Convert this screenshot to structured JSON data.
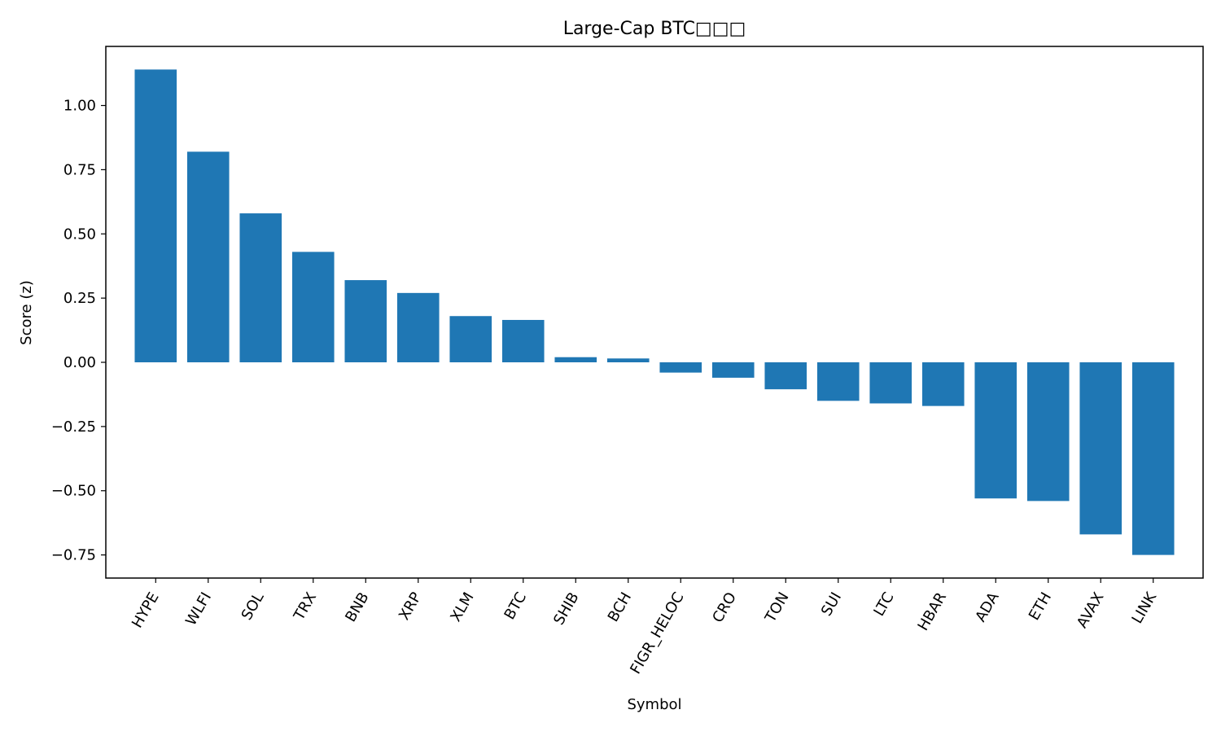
{
  "chart_data": {
    "type": "bar",
    "title": "Large-Cap BTC□□□",
    "xlabel": "Symbol",
    "ylabel": "Score (z)",
    "categories": [
      "HYPE",
      "WLFI",
      "SOL",
      "TRX",
      "BNB",
      "XRP",
      "XLM",
      "BTC",
      "SHIB",
      "BCH",
      "FIGR_HELOC",
      "CRO",
      "TON",
      "SUI",
      "LTC",
      "HBAR",
      "ADA",
      "ETH",
      "AVAX",
      "LINK"
    ],
    "values": [
      1.14,
      0.82,
      0.58,
      0.43,
      0.32,
      0.27,
      0.18,
      0.165,
      0.02,
      0.015,
      -0.04,
      -0.06,
      -0.105,
      -0.15,
      -0.16,
      -0.17,
      -0.53,
      -0.54,
      -0.67,
      -0.75
    ],
    "ylim": [
      -0.84,
      1.23
    ],
    "yticks": [
      1.0,
      0.75,
      0.5,
      0.25,
      0.0,
      -0.25,
      -0.5,
      -0.75
    ],
    "ytick_labels": [
      "1.00",
      "0.75",
      "0.50",
      "0.25",
      "0.00",
      "−0.25",
      "−0.50",
      "−0.75"
    ],
    "bar_color": "#1f77b4",
    "grid": false,
    "legend": null
  }
}
